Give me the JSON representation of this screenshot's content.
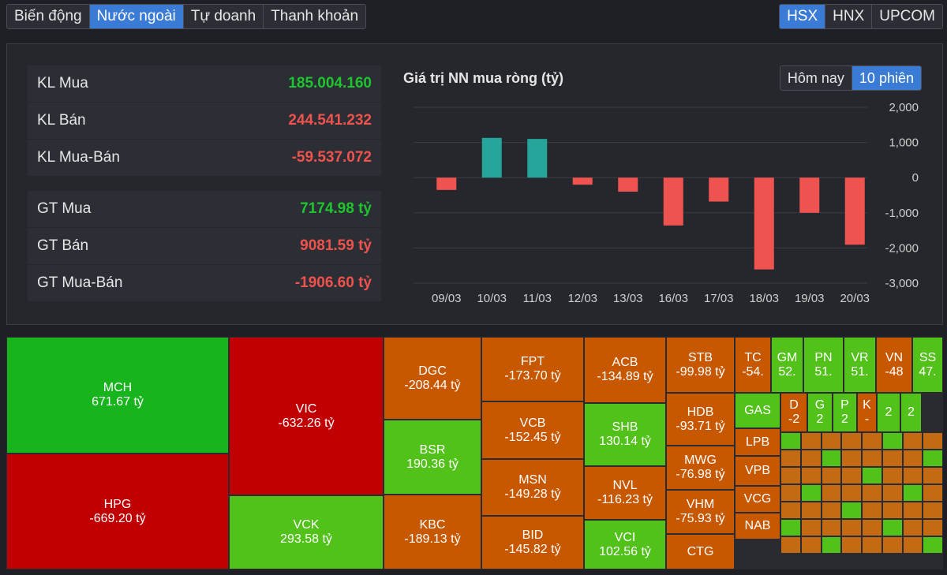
{
  "tabs": [
    "Biến động",
    "Nước ngoài",
    "Tự doanh",
    "Thanh khoản"
  ],
  "active_tab": 1,
  "exchanges": [
    "HSX",
    "HNX",
    "UPCOM"
  ],
  "active_exchange": 0,
  "stats": [
    {
      "label": "KL Mua",
      "value": "185.004.160",
      "color": "green"
    },
    {
      "label": "KL Bán",
      "value": "244.541.232",
      "color": "red"
    },
    {
      "label": "KL Mua-Bán",
      "value": "-59.537.072",
      "color": "red"
    },
    {
      "label": "GT Mua",
      "value": "7174.98 tỷ",
      "color": "green"
    },
    {
      "label": "GT Bán",
      "value": "9081.59 tỷ",
      "color": "red"
    },
    {
      "label": "GT Mua-Bán",
      "value": "-1906.60 tỷ",
      "color": "red"
    }
  ],
  "chart_toggle": [
    "Hôm nay",
    "10 phiên"
  ],
  "chart_toggle_active": 1,
  "chart_data": {
    "type": "bar",
    "title": "Giá trị NN mua ròng (tỷ)",
    "categories": [
      "09/03",
      "10/03",
      "11/03",
      "12/03",
      "13/03",
      "16/03",
      "17/03",
      "18/03",
      "19/03",
      "20/03"
    ],
    "values": [
      -350,
      1130,
      1100,
      -200,
      -400,
      -1360,
      -680,
      -2610,
      -1000,
      -1906.6
    ],
    "ylim": [
      -3000,
      2000
    ],
    "yticks": [
      "2,000",
      "1,000",
      "0",
      "-1,000",
      "-2,000",
      "-3,000"
    ],
    "ytick_values": [
      2000,
      1000,
      0,
      -1000,
      -2000,
      -3000
    ],
    "positive_color": "#26a69a",
    "negative_color": "#ef5350",
    "grid": true
  },
  "treemap": [
    {
      "name": "MCH",
      "value": "671.67 tỷ",
      "c": "c-gr"
    },
    {
      "name": "HPG",
      "value": "-669.20 tỷ",
      "c": "c-rd"
    },
    {
      "name": "VIC",
      "value": "-632.26 tỷ",
      "c": "c-rd"
    },
    {
      "name": "VCK",
      "value": "293.58 tỷ",
      "c": "c-lg"
    },
    {
      "name": "DGC",
      "value": "-208.44 tỷ",
      "c": "c-or"
    },
    {
      "name": "BSR",
      "value": "190.36 tỷ",
      "c": "c-lg"
    },
    {
      "name": "KBC",
      "value": "-189.13 tỷ",
      "c": "c-or"
    },
    {
      "name": "FPT",
      "value": "-173.70 tỷ",
      "c": "c-or"
    },
    {
      "name": "VCB",
      "value": "-152.45 tỷ",
      "c": "c-or"
    },
    {
      "name": "MSN",
      "value": "-149.28 tỷ",
      "c": "c-or"
    },
    {
      "name": "BID",
      "value": "-145.82 tỷ",
      "c": "c-or"
    },
    {
      "name": "ACB",
      "value": "-134.89 tỷ",
      "c": "c-or"
    },
    {
      "name": "SHB",
      "value": "130.14 tỷ",
      "c": "c-lg"
    },
    {
      "name": "NVL",
      "value": "-116.23 tỷ",
      "c": "c-or"
    },
    {
      "name": "VCI",
      "value": "102.56 tỷ",
      "c": "c-lg"
    },
    {
      "name": "STB",
      "value": "-99.98 tỷ",
      "c": "c-or"
    },
    {
      "name": "HDB",
      "value": "-93.71 tỷ",
      "c": "c-or"
    },
    {
      "name": "MWG",
      "value": "-76.98 tỷ",
      "c": "c-or"
    },
    {
      "name": "VHM",
      "value": "-75.93 tỷ",
      "c": "c-or"
    },
    {
      "name": "CTG",
      "value": "",
      "c": "c-or"
    },
    {
      "name": "TC",
      "value": "-54.",
      "c": "c-or"
    },
    {
      "name": "GM",
      "value": "52.",
      "c": "c-lg"
    },
    {
      "name": "PN",
      "value": "51.",
      "c": "c-lg"
    },
    {
      "name": "VR",
      "value": "51.",
      "c": "c-lg"
    },
    {
      "name": "VN",
      "value": "-48",
      "c": "c-or"
    },
    {
      "name": "SS",
      "value": "47.",
      "c": "c-lg"
    },
    {
      "name": "GAS",
      "value": "",
      "c": "c-lg"
    },
    {
      "name": "LPB",
      "value": "",
      "c": "c-or"
    },
    {
      "name": "VPB",
      "value": "",
      "c": "c-or"
    },
    {
      "name": "VCG",
      "value": "",
      "c": "c-or"
    },
    {
      "name": "NAB",
      "value": "",
      "c": "c-or"
    },
    {
      "name": "D",
      "value": "-2",
      "c": "c-or"
    },
    {
      "name": "G",
      "value": "2",
      "c": "c-lg"
    },
    {
      "name": "P",
      "value": "2",
      "c": "c-lg"
    },
    {
      "name": "K",
      "value": "-",
      "c": "c-or"
    },
    {
      "name": "",
      "value": "2",
      "c": "c-lg"
    },
    {
      "name": "",
      "value": "2",
      "c": "c-lg"
    }
  ]
}
